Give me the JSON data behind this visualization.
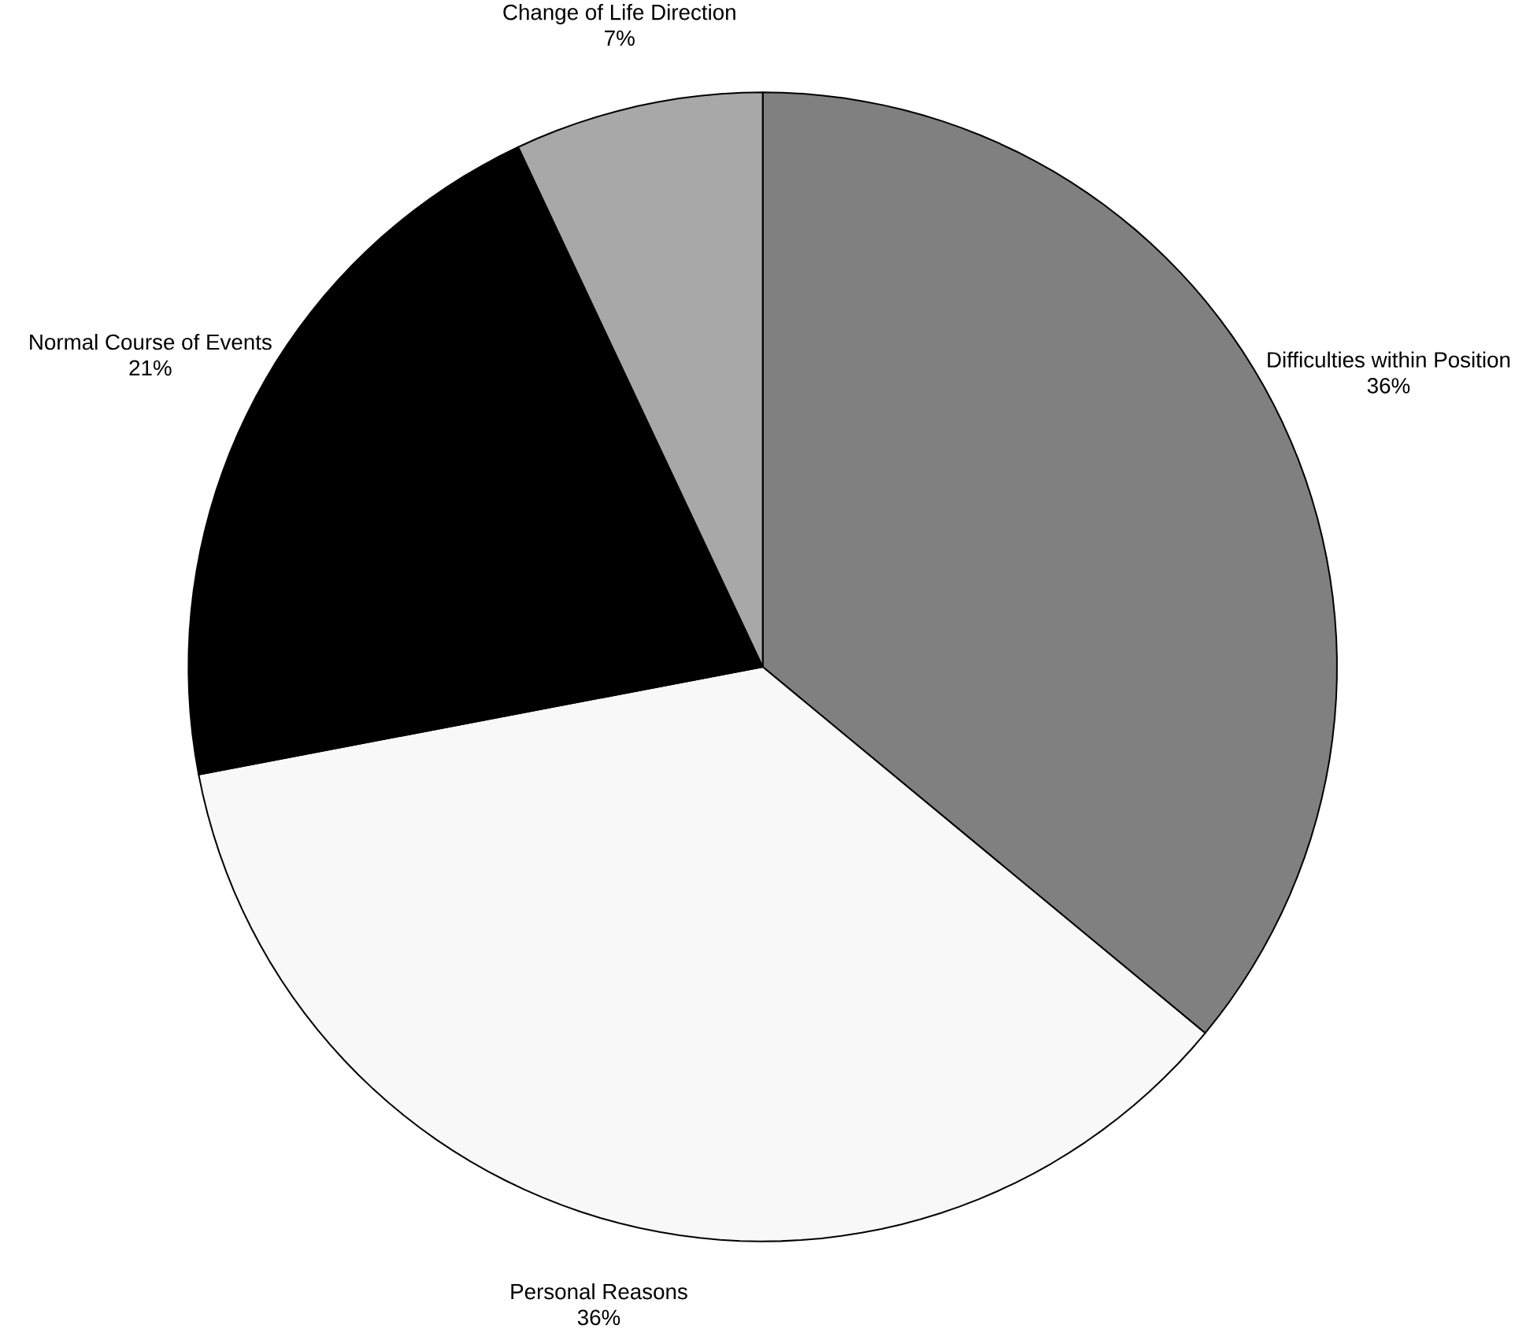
{
  "chart_data": {
    "type": "pie",
    "categories": [
      "Difficulties within Position",
      "Personal Reasons",
      "Normal Course of Events",
      "Change of Life Direction"
    ],
    "values": [
      36,
      36,
      21,
      7
    ],
    "value_labels": [
      "36%",
      "36%",
      "21%",
      "7%"
    ],
    "colors": [
      "#808080",
      "#f8f8f8",
      "#000000",
      "#a8a8a8"
    ]
  }
}
